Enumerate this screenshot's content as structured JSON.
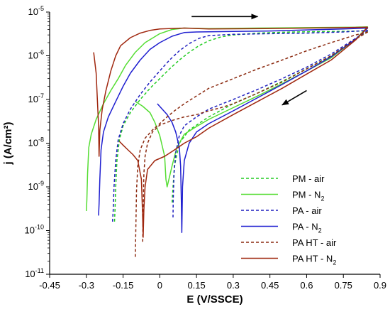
{
  "chart_data": {
    "type": "line",
    "xlabel": "E (V/SSCE)",
    "ylabel": "j (A/cm²)",
    "x_scale": "linear",
    "y_scale": "log",
    "xlim": [
      -0.45,
      0.9
    ],
    "ylim": [
      1e-11,
      1e-05
    ],
    "x_ticks": [
      -0.45,
      -0.3,
      -0.15,
      0,
      0.15,
      0.3,
      0.45,
      0.6,
      0.75,
      0.9
    ],
    "x_tick_labels": [
      "-0.45",
      "-0.3",
      "-0.15",
      "0",
      "0.15",
      "0.3",
      "0.45",
      "0.6",
      "0.75",
      "0.9"
    ],
    "y_ticks": [
      1e-11,
      1e-10,
      1e-09,
      1e-08,
      1e-07,
      1e-06,
      1e-05
    ],
    "y_tick_labels": [
      {
        "base": "10",
        "exp": "-11"
      },
      {
        "base": "10",
        "exp": "-10"
      },
      {
        "base": "10",
        "exp": "-9"
      },
      {
        "base": "10",
        "exp": "-8"
      },
      {
        "base": "10",
        "exp": "-7"
      },
      {
        "base": "10",
        "exp": "-6"
      },
      {
        "base": "10",
        "exp": "-5"
      }
    ],
    "grid": false,
    "legend_position": "bottom-right",
    "annotations": [
      {
        "type": "arrow",
        "direction": "right",
        "from": [
          0.13,
          7.9e-06
        ],
        "to": [
          0.4,
          7.9e-06
        ]
      },
      {
        "type": "arrow",
        "direction": "down-left",
        "from": [
          0.6,
          1.6e-07
        ],
        "to": [
          0.5,
          7.5e-08
        ]
      }
    ],
    "series": [
      {
        "name": "PM - air",
        "sub": "",
        "color": "#22cc22",
        "dash": "dashed",
        "forward": [
          [
            -0.185,
            1.6e-10
          ],
          [
            -0.183,
            3e-10
          ],
          [
            -0.18,
            1e-09
          ],
          [
            -0.175,
            4e-09
          ],
          [
            -0.165,
            1.2e-08
          ],
          [
            -0.15,
            2.5e-08
          ],
          [
            -0.12,
            5e-08
          ],
          [
            -0.08,
            1e-07
          ],
          [
            -0.04,
            1.8e-07
          ],
          [
            0,
            3e-07
          ],
          [
            0.04,
            5e-07
          ],
          [
            0.08,
            8e-07
          ],
          [
            0.12,
            1.2e-06
          ],
          [
            0.16,
            1.7e-06
          ],
          [
            0.2,
            2.2e-06
          ],
          [
            0.25,
            2.7e-06
          ],
          [
            0.3,
            3e-06
          ],
          [
            0.4,
            3.3e-06
          ],
          [
            0.5,
            3.45e-06
          ],
          [
            0.6,
            3.55e-06
          ],
          [
            0.7,
            3.6e-06
          ],
          [
            0.8,
            3.65e-06
          ],
          [
            0.85,
            3.7e-06
          ]
        ],
        "reverse": [
          [
            0.85,
            3.7e-06
          ],
          [
            0.8,
            2.4e-06
          ],
          [
            0.7,
            1e-06
          ],
          [
            0.6,
            5e-07
          ],
          [
            0.5,
            2.6e-07
          ],
          [
            0.4,
            1.4e-07
          ],
          [
            0.3,
            8e-08
          ],
          [
            0.2,
            4e-08
          ],
          [
            0.12,
            2e-08
          ],
          [
            0.08,
            1e-08
          ],
          [
            0.06,
            3e-09
          ],
          [
            0.053,
            8e-10
          ],
          [
            0.05,
            4e-10
          ]
        ]
      },
      {
        "name": "PM - N",
        "sub": "2",
        "color": "#55dd33",
        "dash": "solid",
        "forward": [
          [
            -0.3,
            2.8e-10
          ],
          [
            -0.298,
            5e-10
          ],
          [
            -0.295,
            2e-09
          ],
          [
            -0.29,
            8e-09
          ],
          [
            -0.28,
            1.6e-08
          ],
          [
            -0.26,
            3.5e-08
          ],
          [
            -0.23,
            8e-08
          ],
          [
            -0.2,
            1.6e-07
          ],
          [
            -0.17,
            3e-07
          ],
          [
            -0.14,
            6e-07
          ],
          [
            -0.1,
            1.2e-06
          ],
          [
            -0.06,
            2e-06
          ],
          [
            0,
            3.2e-06
          ],
          [
            0.05,
            4e-06
          ],
          [
            0.1,
            4.3e-06
          ],
          [
            0.2,
            4.2e-06
          ],
          [
            0.4,
            4.3e-06
          ],
          [
            0.6,
            4.4e-06
          ],
          [
            0.8,
            4.5e-06
          ],
          [
            0.85,
            4.6e-06
          ]
        ],
        "reverse": [
          [
            0.85,
            4.6e-06
          ],
          [
            0.8,
            2.4e-06
          ],
          [
            0.7,
            9e-07
          ],
          [
            0.6,
            4.5e-07
          ],
          [
            0.5,
            2.3e-07
          ],
          [
            0.4,
            1.2e-07
          ],
          [
            0.3,
            6.5e-08
          ],
          [
            0.2,
            3.5e-08
          ],
          [
            0.15,
            2.4e-08
          ],
          [
            0.1,
            1.6e-08
          ],
          [
            0.07,
            8e-09
          ],
          [
            0.05,
            3e-09
          ],
          [
            0.03,
            1e-09
          ],
          [
            0.025,
            1.5e-09
          ],
          [
            0.02,
            5e-09
          ],
          [
            0,
            1.5e-08
          ],
          [
            -0.02,
            3e-08
          ],
          [
            -0.04,
            5e-08
          ],
          [
            -0.07,
            7e-08
          ],
          [
            -0.1,
            9e-08
          ]
        ]
      },
      {
        "name": "PA - air",
        "sub": "",
        "color": "#1f1fbf",
        "dash": "dashed",
        "forward": [
          [
            -0.193,
            1.6e-10
          ],
          [
            -0.19,
            3e-10
          ],
          [
            -0.187,
            1e-09
          ],
          [
            -0.18,
            4e-09
          ],
          [
            -0.17,
            1.2e-08
          ],
          [
            -0.15,
            2.8e-08
          ],
          [
            -0.12,
            6e-08
          ],
          [
            -0.08,
            1.3e-07
          ],
          [
            -0.04,
            2.5e-07
          ],
          [
            0,
            4.5e-07
          ],
          [
            0.04,
            8e-07
          ],
          [
            0.08,
            1.3e-06
          ],
          [
            0.12,
            1.9e-06
          ],
          [
            0.16,
            2.5e-06
          ],
          [
            0.2,
            2.9e-06
          ],
          [
            0.3,
            3.1e-06
          ],
          [
            0.45,
            3.2e-06
          ],
          [
            0.6,
            3.3e-06
          ],
          [
            0.75,
            3.5e-06
          ],
          [
            0.85,
            3.8e-06
          ]
        ],
        "reverse": [
          [
            0.85,
            3.8e-06
          ],
          [
            0.8,
            2.5e-06
          ],
          [
            0.7,
            1.1e-06
          ],
          [
            0.6,
            5.5e-07
          ],
          [
            0.5,
            3e-07
          ],
          [
            0.4,
            1.7e-07
          ],
          [
            0.3,
            1e-07
          ],
          [
            0.2,
            6e-08
          ],
          [
            0.15,
            4e-08
          ],
          [
            0.1,
            2.5e-08
          ],
          [
            0.08,
            1.5e-08
          ],
          [
            0.065,
            6e-09
          ],
          [
            0.058,
            2e-09
          ],
          [
            0.055,
            5e-10
          ],
          [
            0.054,
            2e-10
          ]
        ]
      },
      {
        "name": "PA - N",
        "sub": "2",
        "color": "#1f1fd0",
        "dash": "solid",
        "forward": [
          [
            -0.25,
            2.2e-10
          ],
          [
            -0.248,
            4e-10
          ],
          [
            -0.245,
            1.5e-09
          ],
          [
            -0.24,
            7e-09
          ],
          [
            -0.23,
            1.8e-08
          ],
          [
            -0.21,
            4e-08
          ],
          [
            -0.18,
            9e-08
          ],
          [
            -0.15,
            2e-07
          ],
          [
            -0.12,
            4e-07
          ],
          [
            -0.08,
            8e-07
          ],
          [
            -0.04,
            1.4e-06
          ],
          [
            0,
            2e-06
          ],
          [
            0.05,
            2.8e-06
          ],
          [
            0.1,
            3.4e-06
          ],
          [
            0.15,
            3.5e-06
          ],
          [
            0.3,
            3.6e-06
          ],
          [
            0.45,
            3.7e-06
          ],
          [
            0.6,
            3.9e-06
          ],
          [
            0.75,
            4.1e-06
          ],
          [
            0.85,
            4.3e-06
          ]
        ],
        "reverse": [
          [
            0.85,
            4.3e-06
          ],
          [
            0.8,
            2.4e-06
          ],
          [
            0.7,
            9.5e-07
          ],
          [
            0.6,
            4.5e-07
          ],
          [
            0.5,
            2.2e-07
          ],
          [
            0.4,
            1.1e-07
          ],
          [
            0.3,
            5.5e-08
          ],
          [
            0.2,
            2.8e-08
          ],
          [
            0.15,
            1.8e-08
          ],
          [
            0.12,
            1e-08
          ],
          [
            0.1,
            4e-09
          ],
          [
            0.093,
            1e-09
          ],
          [
            0.09,
            9e-11
          ],
          [
            0.088,
            5e-10
          ],
          [
            0.085,
            3e-09
          ],
          [
            0.08,
            8e-09
          ],
          [
            0.065,
            1.8e-08
          ],
          [
            0.05,
            3e-08
          ],
          [
            0.03,
            4.5e-08
          ],
          [
            0.01,
            6e-08
          ],
          [
            -0.01,
            8e-08
          ]
        ]
      },
      {
        "name": "PA HT - air",
        "sub": "",
        "color": "#8b2a10",
        "dash": "dashed",
        "forward": [
          [
            -0.1,
            2.5e-11
          ],
          [
            -0.098,
            1e-10
          ],
          [
            -0.095,
            8e-10
          ],
          [
            -0.09,
            3e-09
          ],
          [
            -0.08,
            7e-09
          ],
          [
            -0.06,
            1.3e-08
          ],
          [
            -0.03,
            2e-08
          ],
          [
            0,
            2.8e-08
          ],
          [
            0.03,
            4e-08
          ],
          [
            0.06,
            5.5e-08
          ],
          [
            0.1,
            8e-08
          ],
          [
            0.15,
            1.2e-07
          ],
          [
            0.2,
            1.8e-07
          ],
          [
            0.3,
            3e-07
          ],
          [
            0.4,
            5e-07
          ],
          [
            0.5,
            8e-07
          ],
          [
            0.6,
            1.3e-06
          ],
          [
            0.7,
            2e-06
          ],
          [
            0.8,
            3e-06
          ],
          [
            0.85,
            3.5e-06
          ]
        ],
        "reverse": [
          [
            0.85,
            3.5e-06
          ],
          [
            0.8,
            2.4e-06
          ],
          [
            0.7,
            1e-06
          ],
          [
            0.6,
            5e-07
          ],
          [
            0.5,
            2.5e-07
          ],
          [
            0.4,
            1.4e-07
          ],
          [
            0.3,
            8e-08
          ],
          [
            0.25,
            6.5e-08
          ],
          [
            0.2,
            5.5e-08
          ],
          [
            0.15,
            4.5e-08
          ],
          [
            0.1,
            4e-08
          ],
          [
            0.05,
            3.3e-08
          ],
          [
            0,
            2.6e-08
          ],
          [
            -0.03,
            1.8e-08
          ],
          [
            -0.05,
            1e-08
          ],
          [
            -0.06,
            5e-09
          ],
          [
            -0.065,
            2e-09
          ],
          [
            -0.068,
            3e-10
          ],
          [
            -0.07,
            5e-11
          ]
        ]
      },
      {
        "name": "PA HT - N",
        "sub": "2",
        "color": "#a02810",
        "dash": "solid",
        "forward": [
          [
            -0.27,
            1.2e-06
          ],
          [
            -0.26,
            4e-07
          ],
          [
            -0.255,
            1e-07
          ],
          [
            -0.25,
            2.5e-08
          ],
          [
            -0.248,
            5e-09
          ],
          [
            -0.245,
            2e-08
          ],
          [
            -0.235,
            6e-08
          ],
          [
            -0.22,
            1.6e-07
          ],
          [
            -0.2,
            4.5e-07
          ],
          [
            -0.18,
            1e-06
          ],
          [
            -0.16,
            1.7e-06
          ],
          [
            -0.12,
            2.6e-06
          ],
          [
            -0.08,
            3.3e-06
          ],
          [
            -0.04,
            3.8e-06
          ],
          [
            0,
            4.1e-06
          ],
          [
            0.1,
            4.3e-06
          ],
          [
            0.2,
            4.1e-06
          ],
          [
            0.43,
            4.2e-06
          ],
          [
            0.6,
            4.3e-06
          ],
          [
            0.75,
            4.4e-06
          ],
          [
            0.85,
            4.5e-06
          ]
        ],
        "reverse": [
          [
            0.85,
            4.5e-06
          ],
          [
            0.8,
            2.3e-06
          ],
          [
            0.7,
            8e-07
          ],
          [
            0.6,
            3.8e-07
          ],
          [
            0.5,
            1.8e-07
          ],
          [
            0.4,
            9e-08
          ],
          [
            0.3,
            4.5e-08
          ],
          [
            0.2,
            2.2e-08
          ],
          [
            0.15,
            1.4e-08
          ],
          [
            0.1,
            1e-08
          ],
          [
            0.06,
            7e-09
          ],
          [
            0.02,
            5e-09
          ],
          [
            -0.02,
            4e-09
          ],
          [
            -0.05,
            2.5e-09
          ],
          [
            -0.06,
            1e-09
          ],
          [
            -0.065,
            3e-10
          ],
          [
            -0.068,
            7e-11
          ],
          [
            -0.07,
            2e-10
          ],
          [
            -0.075,
            1.5e-09
          ],
          [
            -0.09,
            4e-09
          ],
          [
            -0.11,
            5.5e-09
          ],
          [
            -0.13,
            7e-09
          ],
          [
            -0.15,
            9e-09
          ],
          [
            -0.165,
            1.1e-08
          ]
        ]
      }
    ]
  }
}
